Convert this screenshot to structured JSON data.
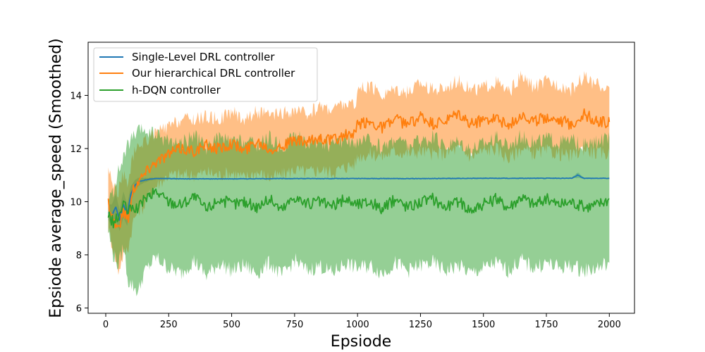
{
  "chart_data": {
    "type": "line",
    "title": "",
    "xlabel": "Epsiode",
    "ylabel": "Epsiode average_speed (Smoothed)",
    "xlim": [
      -70,
      2100
    ],
    "ylim": [
      5.8,
      16.0
    ],
    "xticks": [
      0,
      250,
      500,
      750,
      1000,
      1250,
      1500,
      1750,
      2000
    ],
    "yticks": [
      6,
      8,
      10,
      12,
      14
    ],
    "grid": false,
    "legend_position": "top-left",
    "shaded_bands": true,
    "series": [
      {
        "name": "Single-Level DRL controller",
        "color": "#1f77b4",
        "x": [
          10,
          25,
          40,
          55,
          70,
          85,
          100,
          115,
          130,
          150,
          175,
          200,
          250,
          300,
          400,
          500,
          750,
          1000,
          1250,
          1500,
          1750,
          1850,
          1875,
          1900,
          2000
        ],
        "values": [
          9.6,
          9.5,
          9.8,
          9.3,
          9.9,
          9.5,
          10.3,
          10.6,
          10.75,
          10.8,
          10.85,
          10.87,
          10.87,
          10.86,
          10.86,
          10.86,
          10.87,
          10.87,
          10.87,
          10.88,
          10.88,
          10.88,
          11.0,
          10.88,
          10.88
        ],
        "band_lower": [
          9.3,
          9.1,
          9.3,
          8.9,
          9.4,
          9.1,
          10.0,
          10.4,
          10.6,
          10.7,
          10.8,
          10.83,
          10.84,
          10.84,
          10.84,
          10.84,
          10.85,
          10.85,
          10.85,
          10.86,
          10.86,
          10.86,
          10.9,
          10.86,
          10.86
        ],
        "band_upper": [
          9.9,
          9.9,
          10.3,
          9.7,
          10.4,
          9.9,
          10.6,
          10.8,
          10.9,
          10.9,
          10.9,
          10.91,
          10.9,
          10.88,
          10.88,
          10.88,
          10.89,
          10.89,
          10.89,
          10.9,
          10.9,
          10.9,
          11.1,
          10.9,
          10.9
        ]
      },
      {
        "name": "Our hierarchical DRL controller",
        "color": "#ff7f0e",
        "x": [
          10,
          30,
          50,
          70,
          90,
          110,
          130,
          150,
          175,
          200,
          250,
          300,
          350,
          400,
          450,
          500,
          550,
          600,
          650,
          700,
          750,
          800,
          850,
          900,
          950,
          990,
          1000,
          1050,
          1100,
          1150,
          1200,
          1250,
          1300,
          1350,
          1400,
          1450,
          1500,
          1550,
          1600,
          1650,
          1700,
          1750,
          1800,
          1850,
          1900,
          1950,
          2000
        ],
        "values": [
          10.0,
          9.3,
          9.0,
          9.6,
          9.4,
          10.5,
          10.8,
          11.0,
          11.3,
          11.5,
          11.8,
          12.0,
          11.9,
          12.1,
          12.0,
          12.2,
          11.9,
          12.3,
          12.0,
          12.1,
          12.3,
          12.2,
          12.4,
          12.3,
          12.5,
          12.5,
          12.9,
          13.0,
          12.8,
          13.1,
          12.9,
          13.2,
          12.9,
          13.0,
          13.3,
          12.9,
          13.1,
          13.2,
          12.8,
          13.3,
          13.0,
          13.2,
          13.1,
          12.9,
          13.3,
          13.0,
          13.0
        ],
        "band_lower": [
          9.0,
          8.2,
          7.4,
          8.0,
          8.3,
          9.3,
          9.7,
          9.8,
          10.3,
          10.6,
          11.0,
          11.0,
          11.0,
          11.1,
          11.0,
          11.1,
          10.9,
          11.1,
          10.9,
          11.0,
          11.2,
          11.1,
          11.2,
          11.1,
          11.3,
          11.4,
          11.7,
          11.8,
          11.7,
          11.9,
          11.8,
          11.9,
          11.8,
          11.8,
          12.0,
          11.7,
          11.9,
          12.0,
          11.6,
          12.0,
          11.8,
          11.9,
          11.8,
          11.7,
          12.0,
          11.8,
          11.8
        ],
        "band_upper": [
          11.3,
          10.6,
          10.4,
          11.0,
          10.7,
          11.8,
          12.0,
          12.3,
          12.4,
          12.6,
          12.8,
          13.1,
          13.1,
          13.2,
          13.1,
          13.4,
          13.1,
          13.4,
          13.2,
          13.3,
          13.4,
          13.3,
          13.6,
          13.5,
          13.7,
          13.6,
          14.2,
          14.3,
          14.0,
          14.3,
          14.1,
          14.5,
          14.2,
          14.3,
          14.6,
          14.2,
          14.3,
          14.5,
          14.1,
          14.7,
          14.3,
          14.5,
          14.4,
          14.2,
          14.7,
          14.4,
          14.3
        ]
      },
      {
        "name": "h-DQN controller",
        "color": "#2ca02c",
        "x": [
          10,
          30,
          50,
          70,
          90,
          110,
          130,
          150,
          175,
          200,
          250,
          300,
          350,
          400,
          450,
          500,
          550,
          600,
          650,
          700,
          750,
          800,
          850,
          900,
          950,
          1000,
          1050,
          1100,
          1150,
          1200,
          1250,
          1300,
          1350,
          1400,
          1450,
          1500,
          1550,
          1600,
          1650,
          1700,
          1750,
          1800,
          1850,
          1900,
          1950,
          2000
        ],
        "values": [
          9.5,
          9.2,
          9.4,
          9.9,
          9.6,
          9.8,
          9.7,
          10.1,
          10.2,
          10.4,
          10.0,
          9.9,
          10.2,
          9.7,
          10.1,
          9.9,
          10.0,
          9.8,
          10.1,
          9.7,
          10.2,
          9.9,
          10.0,
          9.8,
          10.1,
          9.9,
          10.0,
          9.7,
          10.1,
          9.8,
          10.0,
          10.1,
          9.8,
          10.0,
          9.7,
          9.9,
          10.1,
          9.8,
          10.2,
          9.9,
          10.1,
          9.9,
          10.0,
          9.8,
          9.9,
          10.1
        ],
        "band_lower": [
          8.9,
          8.0,
          7.6,
          8.3,
          7.0,
          6.8,
          6.6,
          7.3,
          7.6,
          7.9,
          7.5,
          7.3,
          7.8,
          7.2,
          7.7,
          7.4,
          7.6,
          7.3,
          7.7,
          7.2,
          7.8,
          7.4,
          7.6,
          7.3,
          7.7,
          7.5,
          7.6,
          7.3,
          7.7,
          7.4,
          7.6,
          7.7,
          7.4,
          7.6,
          7.3,
          7.5,
          7.7,
          7.4,
          7.8,
          7.5,
          7.7,
          7.5,
          7.6,
          7.4,
          7.5,
          7.7
        ],
        "band_upper": [
          10.0,
          10.4,
          11.1,
          11.6,
          12.2,
          12.4,
          12.6,
          12.7,
          12.6,
          12.5,
          12.3,
          12.2,
          12.5,
          12.0,
          12.4,
          12.2,
          12.3,
          12.1,
          12.4,
          12.0,
          12.5,
          12.2,
          12.3,
          12.1,
          12.4,
          12.2,
          12.3,
          12.0,
          12.4,
          12.1,
          12.3,
          12.4,
          12.1,
          12.3,
          12.0,
          12.2,
          12.4,
          12.1,
          12.5,
          12.2,
          12.4,
          12.2,
          12.3,
          12.1,
          12.2,
          12.4
        ]
      }
    ]
  }
}
